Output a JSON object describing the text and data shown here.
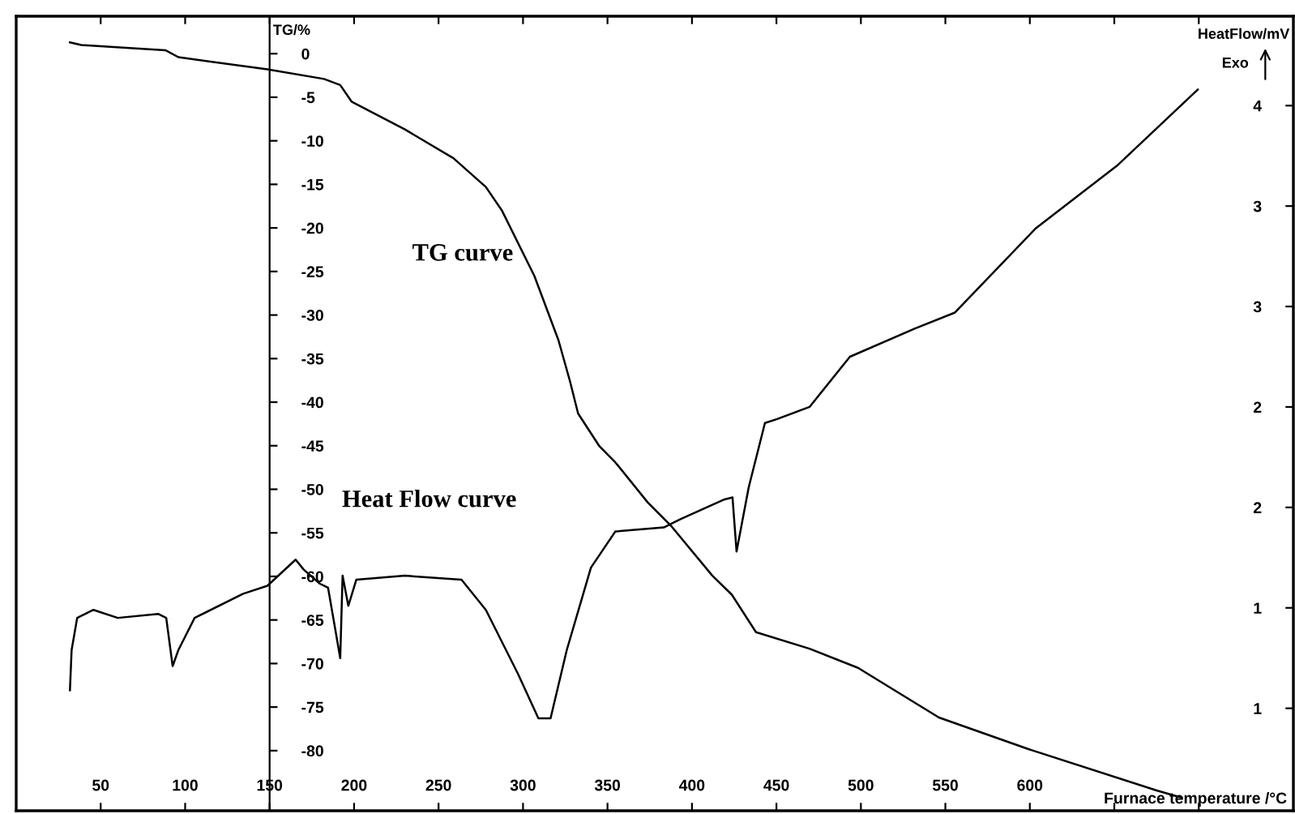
{
  "chart_data": {
    "type": "line",
    "xlabel": "Furnace temperature /°C",
    "ylabel": "TG/%",
    "y2label": "HeatFlow/mV",
    "annotations": [
      "TG curve",
      "Heat Flow curve",
      "Exo"
    ],
    "xlim": [
      0,
      756
    ],
    "ylim": [
      -86.9,
      4.3
    ],
    "y2lim": [
      0.49,
      4.445
    ],
    "xticks": [
      50,
      100,
      150,
      200,
      250,
      300,
      350,
      400,
      450,
      500,
      550,
      600,
      {
        "value": 650,
        "label": null
      },
      {
        "value": 700,
        "label": null
      }
    ],
    "yticks": [
      0,
      -5,
      -10,
      -15,
      -20,
      -25,
      -30,
      -35,
      -40,
      -45,
      -50,
      -55,
      -60,
      -65,
      -70,
      -75,
      -80
    ],
    "y2ticks": [
      {
        "value": 4.0,
        "label": "4"
      },
      {
        "value": 3.5,
        "label": "3"
      },
      {
        "value": 3.0,
        "label": "3"
      },
      {
        "value": 2.5,
        "label": "2"
      },
      {
        "value": 2.0,
        "label": "2"
      },
      {
        "value": 1.5,
        "label": "1"
      },
      {
        "value": 1.0,
        "label": "1"
      }
    ],
    "grid": false,
    "legend": false,
    "marker": "none",
    "line_style": "solid",
    "series": [
      {
        "color": "#000000",
        "x": [
          31.8,
          38.5,
          88.3,
          96,
          148.7,
          182.2,
          191.8,
          198.5,
          230.1,
          258.8,
          278,
          287.5,
          306.7,
          321,
          327.8,
          332.6,
          345,
          354.6,
          373.8,
          388.1,
          412,
          423.6,
          437.9,
          469.6,
          498.3,
          546.2,
          598.9,
          675.5,
          690
        ],
        "values": [
          1.3,
          1.0,
          0.4,
          -0.4,
          -1.8,
          -2.9,
          -3.6,
          -5.5,
          -8.7,
          -12.0,
          -15.3,
          -18.0,
          -25.5,
          -32.9,
          -37.6,
          -41.3,
          -45.0,
          -46.9,
          -51.5,
          -54.3,
          -59.9,
          -62.1,
          -66.4,
          -68.3,
          -70.5,
          -76.2,
          -79.8,
          -84.6,
          -85.4
        ]
      },
      {
        "color": "#000000",
        "axis": "y2",
        "x": [
          31.8,
          32.8,
          36.1,
          45.7,
          60.1,
          84,
          88.8,
          92.6,
          96,
          105.6,
          134.3,
          148.7,
          165.4,
          170.2,
          179.8,
          184.6,
          191.8,
          193.2,
          196.6,
          201.3,
          230.1,
          263.6,
          278,
          297.1,
          309.1,
          316.3,
          325.9,
          340.2,
          354.6,
          383.3,
          392.9,
          419.3,
          424,
          426.4,
          433.6,
          443.2,
          450.4,
          469.6,
          493.5,
          531.8,
          555.7,
          603.6,
          651.5,
          699.4
        ],
        "values": [
          1.09,
          1.29,
          1.45,
          1.49,
          1.45,
          1.47,
          1.45,
          1.21,
          1.29,
          1.45,
          1.57,
          1.61,
          1.74,
          1.69,
          1.62,
          1.6,
          1.25,
          1.66,
          1.51,
          1.64,
          1.66,
          1.64,
          1.49,
          1.17,
          0.95,
          0.95,
          1.29,
          1.7,
          1.88,
          1.9,
          1.94,
          2.04,
          2.05,
          1.78,
          2.1,
          2.42,
          2.44,
          2.5,
          2.75,
          2.89,
          2.97,
          3.39,
          3.7,
          4.08
        ]
      }
    ]
  }
}
